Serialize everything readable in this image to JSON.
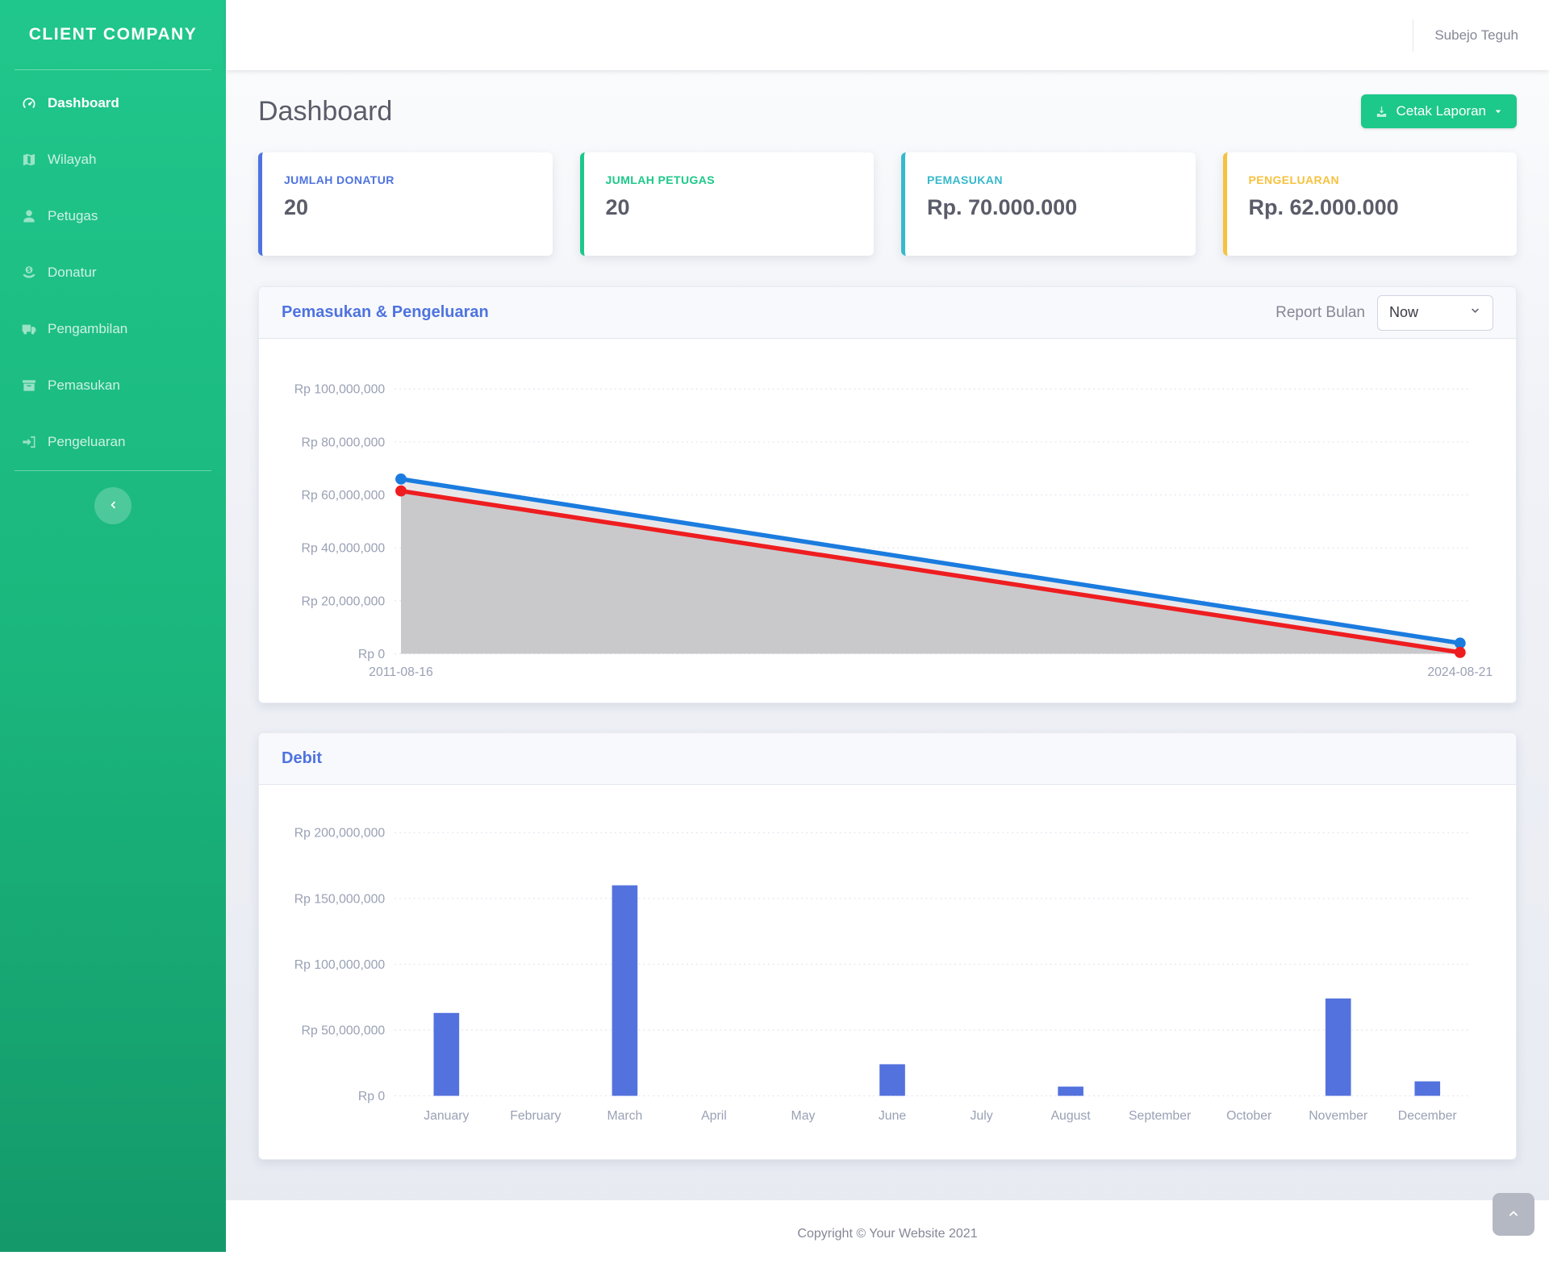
{
  "sidebar": {
    "brand": "CLIENT COMPANY",
    "items": [
      {
        "label": "Dashboard",
        "icon": "tachometer-icon",
        "active": true
      },
      {
        "label": "Wilayah",
        "icon": "map-icon",
        "active": false
      },
      {
        "label": "Petugas",
        "icon": "user-icon",
        "active": false
      },
      {
        "label": "Donatur",
        "icon": "donate-icon",
        "active": false
      },
      {
        "label": "Pengambilan",
        "icon": "truck-icon",
        "active": false
      },
      {
        "label": "Pemasukan",
        "icon": "archive-icon",
        "active": false
      },
      {
        "label": "Pengeluaran",
        "icon": "sign-in-icon",
        "active": false
      }
    ]
  },
  "topbar": {
    "user_name": "Subejo Teguh"
  },
  "page": {
    "title": "Dashboard",
    "print_button": "Cetak Laporan"
  },
  "stat_cards": [
    {
      "label": "JUMLAH DONATUR",
      "value": "20",
      "color": "#4e73df"
    },
    {
      "label": "JUMLAH PETUGAS",
      "value": "20",
      "color": "#1cc88a"
    },
    {
      "label": "PEMASUKAN",
      "value": "Rp. 70.000.000",
      "color": "#36b9cc"
    },
    {
      "label": "PENGELUARAN",
      "value": "Rp. 62.000.000",
      "color": "#f6c23e"
    }
  ],
  "report_bulan": {
    "label": "Report Bulan",
    "value": "Now"
  },
  "footer": {
    "copyright": "Copyright © Your Website 2021"
  },
  "chart_data": [
    {
      "type": "line",
      "title": "Pemasukan & Pengeluaran",
      "x": [
        "2011-08-16",
        "2024-08-21"
      ],
      "series": [
        {
          "name": "Pemasukan",
          "color": "#1b7cdf",
          "fill": "#e7e7ea",
          "values": [
            66000000,
            4000000
          ]
        },
        {
          "name": "Pengeluaran",
          "color": "#ee1d20",
          "fill": "#c9c9cc",
          "values": [
            61500000,
            500000
          ]
        }
      ],
      "ylim": [
        0,
        100000000
      ],
      "yticks": [
        {
          "value": 0,
          "label": "Rp 0"
        },
        {
          "value": 20000000,
          "label": "Rp 20,000,000"
        },
        {
          "value": 40000000,
          "label": "Rp 40,000,000"
        },
        {
          "value": 60000000,
          "label": "Rp 60,000,000"
        },
        {
          "value": 80000000,
          "label": "Rp 80,000,000"
        },
        {
          "value": 100000000,
          "label": "Rp 100,000,000"
        }
      ],
      "grid": "dashed-horizontal",
      "legend": "none"
    },
    {
      "type": "bar",
      "title": "Debit",
      "categories": [
        "January",
        "February",
        "March",
        "April",
        "May",
        "June",
        "July",
        "August",
        "September",
        "October",
        "November",
        "December"
      ],
      "values": [
        63000000,
        0,
        160000000,
        0,
        0,
        24000000,
        0,
        7000000,
        0,
        0,
        74000000,
        11000000
      ],
      "bar_color": "#5472dd",
      "ylim": [
        0,
        200000000
      ],
      "yticks": [
        {
          "value": 0,
          "label": "Rp 0"
        },
        {
          "value": 50000000,
          "label": "Rp 50,000,000"
        },
        {
          "value": 100000000,
          "label": "Rp 100,000,000"
        },
        {
          "value": 150000000,
          "label": "Rp 150,000,000"
        },
        {
          "value": 200000000,
          "label": "Rp 200,000,000"
        }
      ],
      "grid": "dashed-horizontal",
      "legend": "none"
    }
  ]
}
